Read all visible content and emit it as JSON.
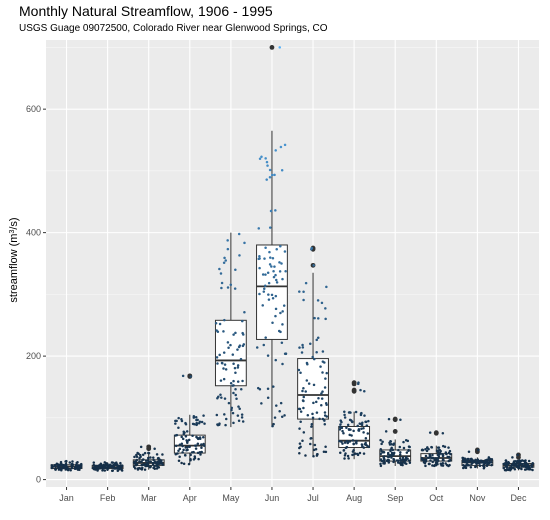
{
  "chart_data": {
    "type": "boxplot",
    "title": "Monthly Natural Streamflow, 1906 - 1995",
    "subtitle": "USGS Guage 09072500, Colorado River near Glenwood Springs, CO",
    "ylabel": "streamflow (m",
    "ylabel_sup": "3",
    "ylabel_tail": "/s)",
    "xlabel": "",
    "ylim": [
      -12,
      712
    ],
    "yticks": [
      0,
      200,
      400,
      600
    ],
    "grid": true,
    "legend": "none",
    "categories": [
      "Jan",
      "Feb",
      "Mar",
      "Apr",
      "May",
      "Jun",
      "Jul",
      "Aug",
      "Sep",
      "Oct",
      "Nov",
      "Dec"
    ],
    "boxes": [
      {
        "month": "Jan",
        "min": 15,
        "q1": 18,
        "median": 21,
        "q3": 24,
        "max": 30,
        "outliers": []
      },
      {
        "month": "Feb",
        "min": 14,
        "q1": 18,
        "median": 20,
        "q3": 23,
        "max": 28,
        "outliers": []
      },
      {
        "month": "Mar",
        "min": 16,
        "q1": 23,
        "median": 27,
        "q3": 32,
        "max": 45,
        "outliers": [
          50,
          53
        ]
      },
      {
        "month": "Apr",
        "min": 25,
        "q1": 43,
        "median": 55,
        "q3": 72,
        "max": 105,
        "outliers": [
          167,
          168
        ]
      },
      {
        "month": "May",
        "min": 85,
        "q1": 152,
        "median": 193,
        "q3": 258,
        "max": 400,
        "outliers": []
      },
      {
        "month": "Jun",
        "min": 85,
        "q1": 227,
        "median": 313,
        "q3": 380,
        "max": 565,
        "outliers": [
          700
        ]
      },
      {
        "month": "Jul",
        "min": 37,
        "q1": 98,
        "median": 137,
        "q3": 196,
        "max": 335,
        "outliers": [
          347,
          373,
          375
        ]
      },
      {
        "month": "Aug",
        "min": 33,
        "q1": 52,
        "median": 63,
        "q3": 86,
        "max": 110,
        "outliers": [
          143,
          145,
          155,
          157
        ]
      },
      {
        "month": "Sep",
        "min": 22,
        "q1": 30,
        "median": 38,
        "q3": 48,
        "max": 65,
        "outliers": [
          78,
          97,
          98
        ]
      },
      {
        "month": "Oct",
        "min": 22,
        "q1": 30,
        "median": 35,
        "q3": 42,
        "max": 55,
        "outliers": [
          75,
          76
        ]
      },
      {
        "month": "Nov",
        "min": 18,
        "q1": 23,
        "median": 28,
        "q3": 31,
        "max": 36,
        "outliers": [
          45,
          48
        ]
      },
      {
        "month": "Dec",
        "min": 15,
        "q1": 20,
        "median": 23,
        "q3": 26,
        "max": 31,
        "outliers": [
          36,
          40
        ]
      }
    ],
    "jitter_points_per_month": 90,
    "colors": {
      "panel_bg": "#ebebeb",
      "grid_major": "#ffffff",
      "box_fill": "#ffffff",
      "box_stroke": "#333333",
      "outlier": "#333333",
      "point_dark": "#132b43",
      "point_light": "#56b1f7"
    }
  }
}
